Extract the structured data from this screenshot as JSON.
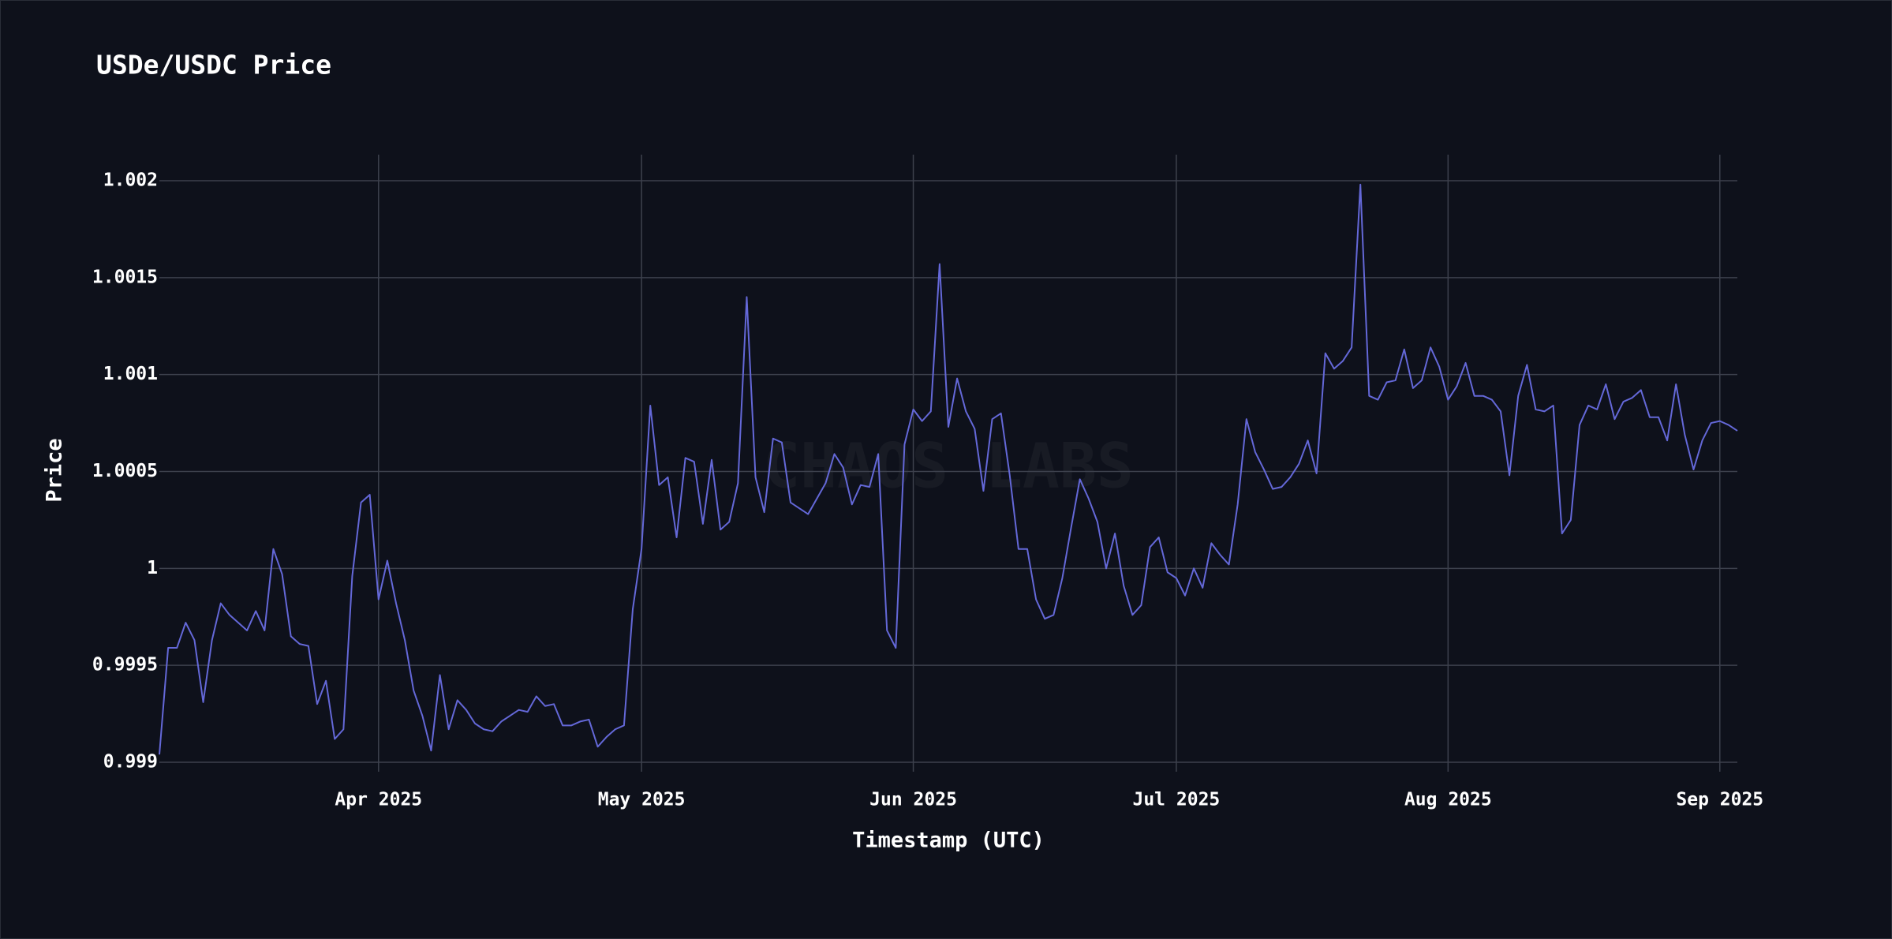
{
  "chart_data": {
    "type": "line",
    "title": "USDe/USDC Price",
    "xlabel": "Timestamp (UTC)",
    "ylabel": "Price",
    "watermark": "CHAOS LABS",
    "xlim": [
      0,
      180
    ],
    "xticks": [
      {
        "value": 25,
        "label": "Apr 2025"
      },
      {
        "value": 55,
        "label": "May 2025"
      },
      {
        "value": 86,
        "label": "Jun 2025"
      },
      {
        "value": 116,
        "label": "Jul 2025"
      },
      {
        "value": 147,
        "label": "Aug 2025"
      },
      {
        "value": 178,
        "label": "Sep 2025"
      }
    ],
    "ylim": [
      0.999,
      1.002
    ],
    "yticks": [
      0.999,
      0.9995,
      1,
      1.0005,
      1.001,
      1.0015,
      1.002
    ],
    "grid": true,
    "series": [
      {
        "name": "USDe/USDC",
        "color": "#6468d8",
        "values": [
          0.99904,
          0.99959,
          0.99959,
          0.99972,
          0.99963,
          0.99931,
          0.99963,
          0.99982,
          0.99976,
          0.99972,
          0.99968,
          0.99978,
          0.99968,
          1.0001,
          0.99997,
          0.99965,
          0.99961,
          0.9996,
          0.9993,
          0.99942,
          0.99912,
          0.99917,
          0.99996,
          1.00034,
          1.00038,
          0.99984,
          1.00004,
          0.99982,
          0.99963,
          0.99937,
          0.99924,
          0.99906,
          0.99945,
          0.99917,
          0.99932,
          0.99927,
          0.9992,
          0.99917,
          0.99916,
          0.99921,
          0.99924,
          0.99927,
          0.99926,
          0.99934,
          0.99929,
          0.9993,
          0.99919,
          0.99919,
          0.99921,
          0.99922,
          0.99908,
          0.99913,
          0.99917,
          0.99919,
          0.99979,
          1.0001,
          1.00084,
          1.00043,
          1.00047,
          1.00016,
          1.00057,
          1.00055,
          1.00023,
          1.00056,
          1.0002,
          1.00024,
          1.00044,
          1.0014,
          1.00047,
          1.00029,
          1.00067,
          1.00065,
          1.00034,
          1.00031,
          1.00028,
          1.00036,
          1.00044,
          1.00059,
          1.00052,
          1.00033,
          1.00043,
          1.00042,
          1.00059,
          0.99968,
          0.99959,
          1.00064,
          1.00082,
          1.00076,
          1.00081,
          1.00157,
          1.00073,
          1.00098,
          1.00081,
          1.00072,
          1.0004,
          1.00077,
          1.0008,
          1.00048,
          1.0001,
          1.0001,
          0.99984,
          0.99974,
          0.99976,
          0.99995,
          1.00021,
          1.00046,
          1.00036,
          1.00024,
          1.0,
          1.00018,
          0.99991,
          0.99976,
          0.99981,
          1.00011,
          1.00016,
          0.99998,
          0.99995,
          0.99986,
          1.0,
          0.9999,
          1.00013,
          1.00007,
          1.00002,
          1.00033,
          1.00077,
          1.0006,
          1.00051,
          1.00041,
          1.00042,
          1.00047,
          1.00054,
          1.00066,
          1.00049,
          1.00111,
          1.00103,
          1.00107,
          1.00114,
          1.00198,
          1.00089,
          1.00087,
          1.00096,
          1.00097,
          1.00113,
          1.00093,
          1.00097,
          1.00114,
          1.00104,
          1.00087,
          1.00094,
          1.00106,
          1.00089,
          1.00089,
          1.00087,
          1.00081,
          1.00048,
          1.00089,
          1.00105,
          1.00082,
          1.00081,
          1.00084,
          1.00018,
          1.00025,
          1.00074,
          1.00084,
          1.00082,
          1.00095,
          1.00077,
          1.00086,
          1.00088,
          1.00092,
          1.00078,
          1.00078,
          1.00066,
          1.00095,
          1.00069,
          1.00051,
          1.00066,
          1.00075,
          1.00076,
          1.00074,
          1.00071
        ]
      }
    ]
  }
}
